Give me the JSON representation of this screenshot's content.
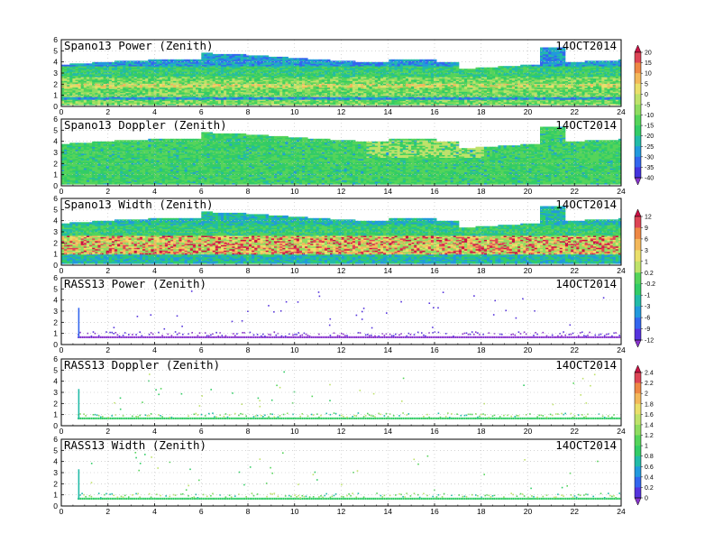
{
  "figure": {
    "x_ticks": [
      "0",
      "2",
      "4",
      "6",
      "8",
      "10",
      "12",
      "14",
      "16",
      "18",
      "20",
      "22",
      "24"
    ],
    "y_ticks": [
      "0",
      "1",
      "2",
      "3",
      "4",
      "5",
      "6"
    ]
  },
  "chart_data": [
    {
      "type": "heatmap",
      "title": "Spano13 Power (Zenith)",
      "date": "14OCT2014",
      "xlim": [
        0,
        24
      ],
      "ylim": [
        0,
        6
      ],
      "colorbar": "cb1",
      "kind": "spano-power"
    },
    {
      "type": "heatmap",
      "title": "Spano13 Doppler (Zenith)",
      "date": "14OCT2014",
      "xlim": [
        0,
        24
      ],
      "ylim": [
        0,
        6
      ],
      "colorbar": "cb2",
      "kind": "spano-doppler"
    },
    {
      "type": "heatmap",
      "title": "Spano13 Width (Zenith)",
      "date": "14OCT2014",
      "xlim": [
        0,
        24
      ],
      "ylim": [
        0,
        6
      ],
      "colorbar": "cb2",
      "kind": "spano-width"
    },
    {
      "type": "heatmap",
      "title": "RASS13 Power (Zenith)",
      "date": "14OCT2014",
      "xlim": [
        0,
        24
      ],
      "ylim": [
        0,
        6
      ],
      "colorbar": "cb3",
      "kind": "rass-power"
    },
    {
      "type": "heatmap",
      "title": "RASS13 Doppler (Zenith)",
      "date": "14OCT2014",
      "xlim": [
        0,
        24
      ],
      "ylim": [
        0,
        6
      ],
      "colorbar": "cb4",
      "kind": "rass"
    },
    {
      "type": "heatmap",
      "title": "RASS13 Width (Zenith)",
      "date": "14OCT2014",
      "xlim": [
        0,
        24
      ],
      "ylim": [
        0,
        6
      ],
      "colorbar": "cb4",
      "kind": "rass"
    }
  ],
  "colorbars": {
    "cb1": {
      "labels": [
        "20",
        "15",
        "10",
        "5",
        "0",
        "-5",
        "-10",
        "-15",
        "-20",
        "-25",
        "-30",
        "-35",
        "-40"
      ],
      "colors": [
        "#cc1144",
        "#dd4455",
        "#ee8844",
        "#f3b85a",
        "#eadf6a",
        "#bfe26a",
        "#8fdc60",
        "#55d45a",
        "#33cc66",
        "#22bba8",
        "#2299dd",
        "#3366ee",
        "#4433dd",
        "#8833cc"
      ]
    },
    "cb2": {
      "labels": [
        "12",
        "9",
        "6",
        "3",
        "1",
        "0.2",
        "-0.2",
        "-1",
        "-3",
        "-6",
        "-9",
        "-12"
      ],
      "colors": [
        "#cc1144",
        "#dd4455",
        "#ee8844",
        "#f3b85a",
        "#eadf6a",
        "#bfe26a",
        "#55d45a",
        "#33cc66",
        "#22bba8",
        "#2299dd",
        "#3366ee",
        "#5533dd",
        "#8833cc"
      ]
    },
    "cb3": {
      "labels": [
        "2.4",
        "2.2",
        "2",
        "1.8",
        "1.6",
        "1.4",
        "1.2",
        "1",
        "0.8",
        "0.6",
        "0.4",
        "0.2",
        "0"
      ],
      "colors": [
        "#cc1144",
        "#dd4455",
        "#ee8844",
        "#f3b85a",
        "#eadf6a",
        "#bfe26a",
        "#8fdc60",
        "#55d45a",
        "#33cc66",
        "#22bba8",
        "#2299dd",
        "#3366ee",
        "#5533dd",
        "#8833cc"
      ]
    }
  }
}
